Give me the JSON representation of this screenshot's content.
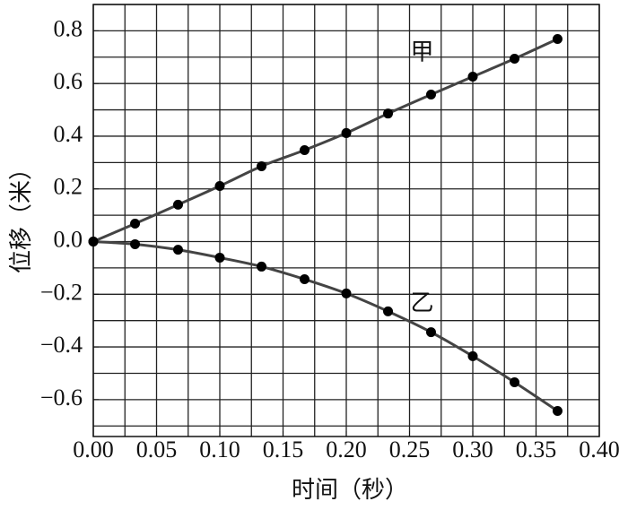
{
  "chart_data": {
    "type": "line",
    "x_label": "时间（秒）",
    "y_label": "位移（米）",
    "x": [
      0,
      0.033,
      0.067,
      0.1,
      0.133,
      0.167,
      0.2,
      0.233,
      0.267,
      0.3,
      0.333,
      0.367
    ],
    "series": [
      {
        "name": "甲",
        "color": "#444444",
        "values": [
          0,
          0.068,
          0.14,
          0.211,
          0.286,
          0.347,
          0.412,
          0.486,
          0.558,
          0.626,
          0.694,
          0.769
        ]
      },
      {
        "name": "乙",
        "color": "#444444",
        "values": [
          0,
          -0.01,
          -0.031,
          -0.061,
          -0.095,
          -0.143,
          -0.197,
          -0.265,
          -0.344,
          -0.435,
          -0.534,
          -0.643
        ]
      }
    ],
    "xlim": [
      0,
      0.4
    ],
    "ylim": [
      -0.74,
      0.9
    ],
    "xticks": [
      {
        "value": 0,
        "label": "0.00"
      },
      {
        "value": 0.05,
        "label": "0.05"
      },
      {
        "value": 0.1,
        "label": "0.10"
      },
      {
        "value": 0.15,
        "label": "0.15"
      },
      {
        "value": 0.2,
        "label": "0.20"
      },
      {
        "value": 0.25,
        "label": "0.25"
      },
      {
        "value": 0.3,
        "label": "0.30"
      },
      {
        "value": 0.35,
        "label": "0.35"
      },
      {
        "value": 0.4,
        "label": "0.40"
      }
    ],
    "yticks": [
      {
        "value": -0.6,
        "label": "−0.6"
      },
      {
        "value": -0.4,
        "label": "−0.4"
      },
      {
        "value": -0.2,
        "label": "−0.2"
      },
      {
        "value": 0,
        "label": "0.0"
      },
      {
        "value": 0.2,
        "label": "0.2"
      },
      {
        "value": 0.4,
        "label": "0.4"
      },
      {
        "value": 0.6,
        "label": "0.6"
      },
      {
        "value": 0.8,
        "label": "0.8"
      }
    ],
    "xgrid": [
      0,
      0.025,
      0.05,
      0.075,
      0.1,
      0.125,
      0.15,
      0.175,
      0.2,
      0.225,
      0.25,
      0.275,
      0.3,
      0.325,
      0.35,
      0.375,
      0.4
    ],
    "ygrid": [
      -0.7,
      -0.6,
      -0.5,
      -0.4,
      -0.3,
      -0.2,
      -0.1,
      0,
      0.1,
      0.2,
      0.3,
      0.4,
      0.5,
      0.6,
      0.7,
      0.8,
      0.9
    ],
    "grid": true
  }
}
